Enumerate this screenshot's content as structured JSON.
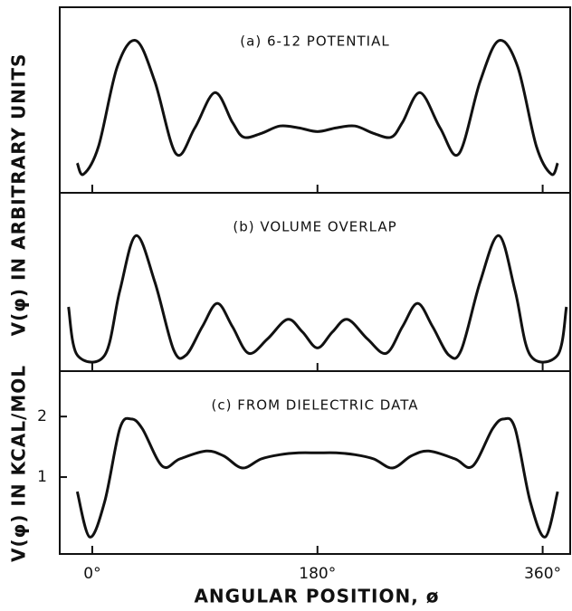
{
  "chart_data": [
    {
      "type": "line",
      "title": "(a) 6-12 POTENTIAL",
      "ylabel": "V(φ) IN ARBITRARY UNITS",
      "xlim": [
        -26,
        382
      ],
      "ylim": [
        0,
        1
      ],
      "color": "#111111",
      "x": [
        -12,
        -7,
        5,
        20,
        35,
        50,
        67,
        82,
        98,
        112,
        121,
        135,
        150,
        165,
        180,
        195,
        210,
        225,
        239,
        248,
        262,
        278,
        293,
        310,
        325,
        340,
        355,
        367,
        372
      ],
      "values": [
        0.16,
        0.1,
        0.25,
        0.68,
        0.82,
        0.6,
        0.21,
        0.35,
        0.54,
        0.38,
        0.3,
        0.32,
        0.36,
        0.35,
        0.33,
        0.35,
        0.36,
        0.32,
        0.3,
        0.38,
        0.54,
        0.35,
        0.21,
        0.6,
        0.82,
        0.68,
        0.25,
        0.1,
        0.16
      ]
    },
    {
      "type": "line",
      "title": "(b) VOLUME OVERLAP",
      "xlim": [
        -26,
        382
      ],
      "ylim": [
        0,
        1
      ],
      "color": "#111111",
      "x": [
        -19,
        -12,
        10,
        22,
        35,
        50,
        65,
        75,
        88,
        100,
        112,
        125,
        140,
        156,
        168,
        180,
        192,
        204,
        220,
        235,
        248,
        260,
        272,
        285,
        295,
        310,
        325,
        338,
        350,
        372,
        379
      ],
      "values": [
        0.36,
        0.09,
        0.09,
        0.45,
        0.76,
        0.5,
        0.12,
        0.09,
        0.25,
        0.38,
        0.25,
        0.1,
        0.18,
        0.29,
        0.22,
        0.13,
        0.22,
        0.29,
        0.18,
        0.1,
        0.25,
        0.38,
        0.25,
        0.09,
        0.12,
        0.5,
        0.76,
        0.45,
        0.09,
        0.09,
        0.36
      ]
    },
    {
      "type": "line",
      "title": "(c) FROM DIELECTRIC DATA",
      "ylabel": "V(φ) IN KCAL/MOL",
      "xlabel": "ANGULAR POSITION, ø",
      "xlim": [
        -26,
        382
      ],
      "ylim": [
        -0.27,
        2.75
      ],
      "yticks": [
        1,
        2
      ],
      "color": "#111111",
      "xticks": [
        {
          "value": 0,
          "label": "0°"
        },
        {
          "value": 180,
          "label": "180°"
        },
        {
          "value": 360,
          "label": "360°"
        }
      ],
      "x": [
        -12,
        -2,
        10,
        22,
        31,
        40,
        56,
        70,
        91,
        105,
        120,
        135,
        150,
        165,
        180,
        195,
        210,
        225,
        240,
        255,
        269,
        290,
        304,
        320,
        329,
        338,
        350,
        362,
        372
      ],
      "values": [
        0.76,
        0.01,
        0.6,
        1.8,
        1.96,
        1.8,
        1.18,
        1.3,
        1.43,
        1.35,
        1.15,
        1.3,
        1.37,
        1.4,
        1.4,
        1.4,
        1.37,
        1.3,
        1.15,
        1.35,
        1.43,
        1.3,
        1.18,
        1.8,
        1.96,
        1.8,
        0.6,
        0.01,
        0.76
      ]
    }
  ]
}
